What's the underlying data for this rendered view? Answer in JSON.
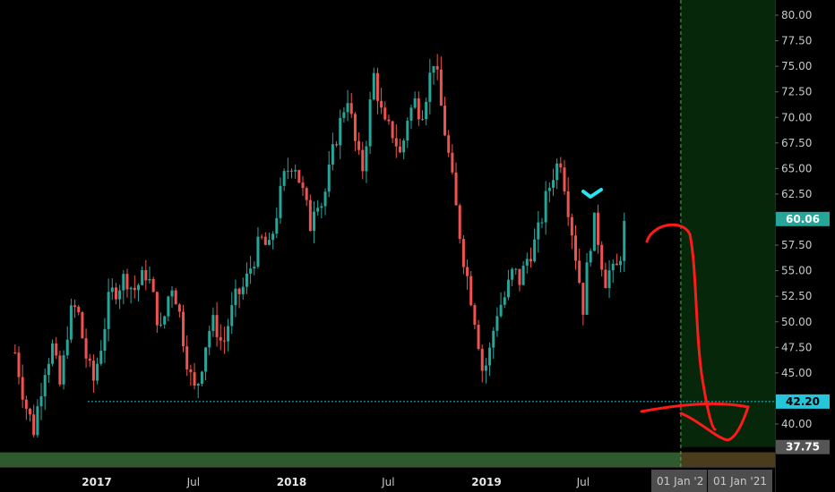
{
  "chart_data": {
    "type": "candlestick",
    "title": "",
    "xlabel": "",
    "ylabel": "",
    "ylim": [
      35.5,
      81
    ],
    "y_ticks": [
      "80.00",
      "77.50",
      "75.00",
      "72.50",
      "70.00",
      "67.50",
      "65.00",
      "62.50",
      "57.50",
      "55.00",
      "52.50",
      "50.00",
      "47.50",
      "45.00",
      "40.00"
    ],
    "x_ticks": [
      {
        "label": "2017",
        "date": "2017-01-01",
        "bold": true
      },
      {
        "label": "Jul",
        "date": "2017-07-01",
        "bold": false
      },
      {
        "label": "2018",
        "date": "2018-01-01",
        "bold": true
      },
      {
        "label": "Jul",
        "date": "2018-07-01",
        "bold": false
      },
      {
        "label": "2019",
        "date": "2019-01-01",
        "bold": true
      },
      {
        "label": "Jul",
        "date": "2019-07-01",
        "bold": false
      }
    ],
    "future_date_labels": [
      "01 Jan '2",
      "01 Jan '21"
    ],
    "price_badges": [
      {
        "value": "60.06",
        "price": 60.06,
        "color": "#26a69a"
      },
      {
        "value": "42.20",
        "price": 42.2,
        "color": "#26c6da"
      },
      {
        "value": "37.75",
        "price": 37.75,
        "color": "#555555"
      }
    ],
    "support_line": {
      "price": 42.2,
      "from_date": "2016-12-15",
      "color": "#26c6da"
    },
    "highlight_zone": {
      "from_date": "2019-12-31",
      "price_low": 37.75,
      "color": "#1b5e20"
    },
    "colors": {
      "up": "#26a69a",
      "down": "#ef5350",
      "background": "#000000",
      "annotation": "#ff1a1a",
      "check": "#26e6f0"
    },
    "price_path": [
      [
        "2016-08-01",
        47.0
      ],
      [
        "2016-08-20",
        42.0
      ],
      [
        "2016-09-05",
        39.5
      ],
      [
        "2016-09-25",
        45.5
      ],
      [
        "2016-10-10",
        47.5
      ],
      [
        "2016-10-25",
        43.5
      ],
      [
        "2016-11-10",
        50.5
      ],
      [
        "2016-11-25",
        51.5
      ],
      [
        "2016-12-10",
        47.0
      ],
      [
        "2016-12-25",
        44.0
      ],
      [
        "2017-01-10",
        48.0
      ],
      [
        "2017-01-25",
        52.5
      ],
      [
        "2017-02-10",
        53.5
      ],
      [
        "2017-02-25",
        54.5
      ],
      [
        "2017-03-10",
        53.0
      ],
      [
        "2017-03-25",
        54.0
      ],
      [
        "2017-04-05",
        55.0
      ],
      [
        "2017-04-20",
        51.5
      ],
      [
        "2017-05-01",
        49.0
      ],
      [
        "2017-05-10",
        51.0
      ],
      [
        "2017-05-20",
        54.0
      ],
      [
        "2017-06-01",
        52.0
      ],
      [
        "2017-06-15",
        47.5
      ],
      [
        "2017-06-28",
        44.0
      ],
      [
        "2017-07-05",
        43.0
      ],
      [
        "2017-07-15",
        45.5
      ],
      [
        "2017-07-28",
        49.0
      ],
      [
        "2017-08-10",
        50.0
      ],
      [
        "2017-08-25",
        47.5
      ],
      [
        "2017-09-05",
        50.0
      ],
      [
        "2017-09-20",
        52.5
      ],
      [
        "2017-10-05",
        53.5
      ],
      [
        "2017-10-20",
        56.0
      ],
      [
        "2017-11-05",
        58.0
      ],
      [
        "2017-11-20",
        57.0
      ],
      [
        "2017-12-05",
        61.0
      ],
      [
        "2017-12-20",
        64.5
      ],
      [
        "2018-01-05",
        66.0
      ],
      [
        "2018-01-20",
        63.0
      ],
      [
        "2018-02-05",
        59.5
      ],
      [
        "2018-02-15",
        62.5
      ],
      [
        "2018-02-28",
        61.5
      ],
      [
        "2018-03-10",
        64.0
      ],
      [
        "2018-03-25",
        68.0
      ],
      [
        "2018-04-05",
        70.0
      ],
      [
        "2018-04-15",
        72.5
      ],
      [
        "2018-04-25",
        69.0
      ],
      [
        "2018-05-05",
        66.0
      ],
      [
        "2018-05-15",
        65.0
      ],
      [
        "2018-05-25",
        70.0
      ],
      [
        "2018-06-05",
        74.5
      ],
      [
        "2018-06-15",
        71.0
      ],
      [
        "2018-06-25",
        69.0
      ],
      [
        "2018-07-10",
        68.5
      ],
      [
        "2018-07-25",
        66.0
      ],
      [
        "2018-08-05",
        70.0
      ],
      [
        "2018-08-20",
        71.5
      ],
      [
        "2018-09-01",
        70.5
      ],
      [
        "2018-09-15",
        73.5
      ],
      [
        "2018-09-25",
        76.0
      ],
      [
        "2018-10-05",
        72.0
      ],
      [
        "2018-10-20",
        67.0
      ],
      [
        "2018-11-05",
        61.0
      ],
      [
        "2018-11-20",
        56.0
      ],
      [
        "2018-12-05",
        52.0
      ],
      [
        "2018-12-15",
        49.0
      ],
      [
        "2018-12-25",
        45.0
      ],
      [
        "2019-01-05",
        46.5
      ],
      [
        "2019-01-20",
        51.0
      ],
      [
        "2019-02-05",
        52.5
      ],
      [
        "2019-02-20",
        55.0
      ],
      [
        "2019-03-05",
        54.0
      ],
      [
        "2019-03-20",
        56.5
      ],
      [
        "2019-04-05",
        58.0
      ],
      [
        "2019-04-20",
        61.5
      ],
      [
        "2019-05-05",
        64.5
      ],
      [
        "2019-05-20",
        66.0
      ],
      [
        "2019-06-01",
        62.0
      ],
      [
        "2019-06-10",
        59.0
      ],
      [
        "2019-06-20",
        55.5
      ],
      [
        "2019-07-01",
        51.5
      ],
      [
        "2019-07-10",
        56.0
      ],
      [
        "2019-07-20",
        60.0
      ],
      [
        "2019-08-01",
        57.5
      ],
      [
        "2019-08-10",
        54.0
      ],
      [
        "2019-08-20",
        55.0
      ],
      [
        "2019-08-30",
        54.5
      ],
      [
        "2019-09-10",
        57.0
      ],
      [
        "2019-09-18",
        60.06
      ]
    ]
  },
  "annotations": {
    "check_icon": "check-icon",
    "drawing": "hand-drawn-arrow"
  }
}
